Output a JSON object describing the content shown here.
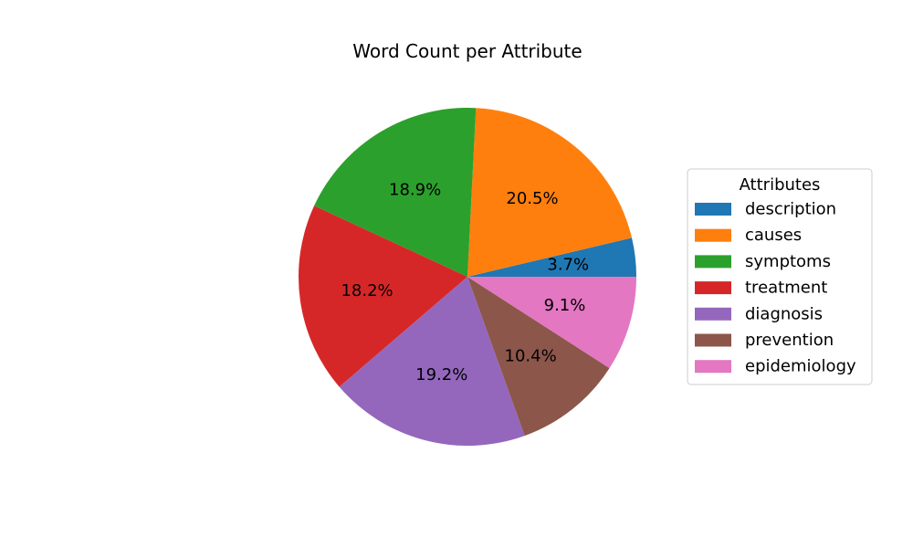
{
  "chart_data": {
    "type": "pie",
    "title": "Word Count per Attribute",
    "legend_title": "Attributes",
    "legend_position": "right",
    "start_angle": 0,
    "direction": "counterclockwise",
    "slices": [
      {
        "label": "description",
        "percent": 3.7,
        "display": "3.7%",
        "color": "#1f77b4"
      },
      {
        "label": "causes",
        "percent": 20.5,
        "display": "20.5%",
        "color": "#ff7f0e"
      },
      {
        "label": "symptoms",
        "percent": 18.9,
        "display": "18.9%",
        "color": "#2ca02c"
      },
      {
        "label": "treatment",
        "percent": 18.2,
        "display": "18.2%",
        "color": "#d62728"
      },
      {
        "label": "diagnosis",
        "percent": 19.2,
        "display": "19.2%",
        "color": "#9467bd"
      },
      {
        "label": "prevention",
        "percent": 10.4,
        "display": "10.4%",
        "color": "#8c564b"
      },
      {
        "label": "epidemiology",
        "percent": 9.1,
        "display": "9.1%",
        "color": "#e377c2"
      }
    ]
  }
}
